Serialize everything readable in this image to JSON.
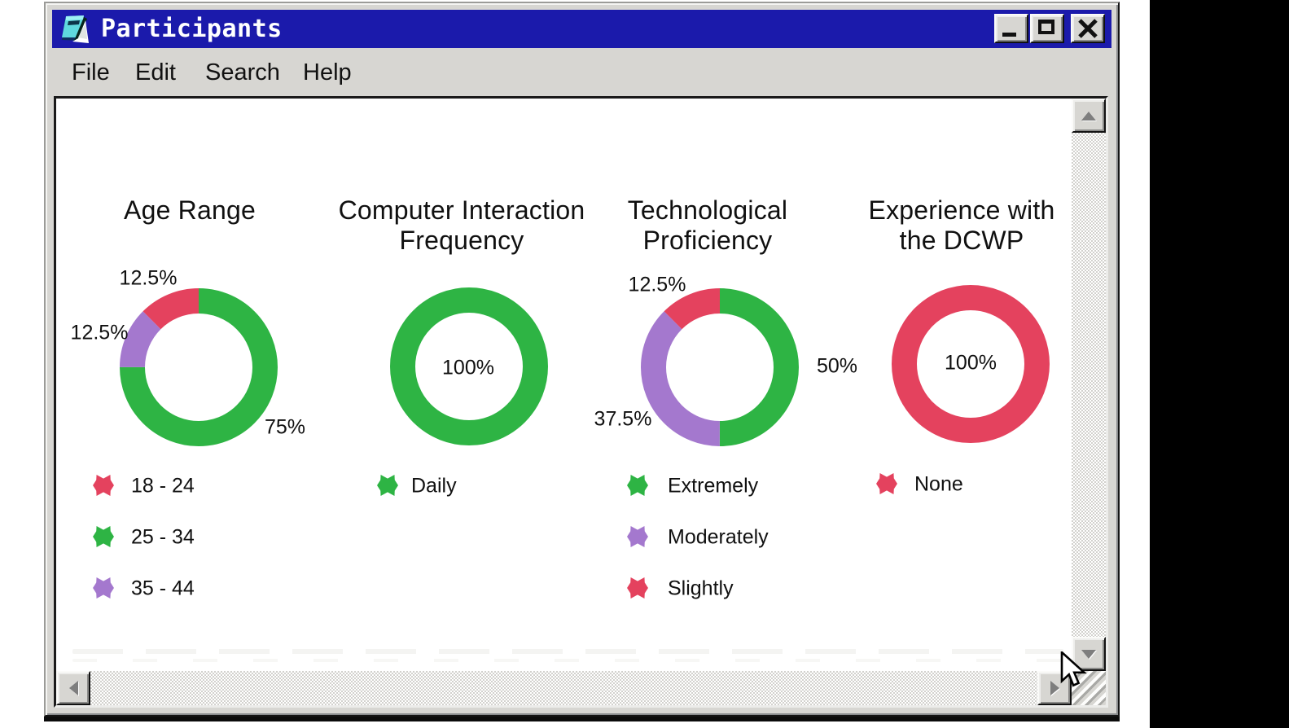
{
  "window": {
    "title": "Participants",
    "menu": [
      {
        "label": "File"
      },
      {
        "label": "Edit"
      },
      {
        "label": "Search"
      },
      {
        "label": "Help"
      }
    ],
    "buttons": {
      "minimize": "minimize",
      "maximize": "maximize",
      "close": "close"
    }
  },
  "colors": {
    "green": "#2eb444",
    "red": "#e4425e",
    "purple": "#a478ce",
    "titlebar_blue": "#1b1aab",
    "chrome_gray": "#d7d6d2",
    "canvas_white": "#ffffff",
    "side_band_black": "#000000",
    "text": "#101010"
  },
  "chart_data": [
    {
      "type": "pie",
      "variant": "donut",
      "title": "Age Range",
      "title_lines": [
        "Age Range",
        ""
      ],
      "categories": [
        "18 - 24",
        "25 - 34",
        "35 - 44"
      ],
      "values": [
        12.5,
        75,
        12.5
      ],
      "slice_colors": [
        "red",
        "green",
        "purple"
      ],
      "ring_clockwise_from_top": [
        {
          "category": "25 - 34",
          "pct": 75,
          "color": "green"
        },
        {
          "category": "35 - 44",
          "pct": 12.5,
          "color": "purple"
        },
        {
          "category": "18 - 24",
          "pct": 12.5,
          "color": "red"
        }
      ],
      "outside_labels": [
        {
          "text": "12.5%",
          "segment": "18 - 24"
        },
        {
          "text": "12.5%",
          "segment": "35 - 44"
        },
        {
          "text": "75%",
          "segment": "25 - 34"
        }
      ],
      "center_label": "",
      "legend": [
        {
          "label": "18 - 24",
          "color": "red"
        },
        {
          "label": "25 - 34",
          "color": "green"
        },
        {
          "label": "35 - 44",
          "color": "purple"
        }
      ]
    },
    {
      "type": "pie",
      "variant": "donut",
      "title": "Computer Interaction Frequency",
      "title_lines": [
        "Computer Interaction",
        "Frequency"
      ],
      "categories": [
        "Daily"
      ],
      "values": [
        100
      ],
      "slice_colors": [
        "green"
      ],
      "ring_clockwise_from_top": [
        {
          "category": "Daily",
          "pct": 100,
          "color": "green"
        }
      ],
      "outside_labels": [],
      "center_label": "100%",
      "legend": [
        {
          "label": "Daily",
          "color": "green"
        }
      ]
    },
    {
      "type": "pie",
      "variant": "donut",
      "title": "Technological Proficiency",
      "title_lines": [
        "Technological",
        "Proficiency"
      ],
      "categories": [
        "Extremely",
        "Moderately",
        "Slightly"
      ],
      "values": [
        50,
        37.5,
        12.5
      ],
      "slice_colors": [
        "green",
        "purple",
        "red"
      ],
      "ring_clockwise_from_top": [
        {
          "category": "Extremely",
          "pct": 50,
          "color": "green"
        },
        {
          "category": "Moderately",
          "pct": 37.5,
          "color": "purple"
        },
        {
          "category": "Slightly",
          "pct": 12.5,
          "color": "red"
        }
      ],
      "outside_labels": [
        {
          "text": "12.5%",
          "segment": "Slightly"
        },
        {
          "text": "50%",
          "segment": "Extremely"
        },
        {
          "text": "37.5%",
          "segment": "Moderately"
        }
      ],
      "center_label": "",
      "legend": [
        {
          "label": "Extremely",
          "color": "green"
        },
        {
          "label": "Moderately",
          "color": "purple"
        },
        {
          "label": "Slightly",
          "color": "red"
        }
      ]
    },
    {
      "type": "pie",
      "variant": "donut",
      "title": "Experience with the DCWP",
      "title_lines": [
        "Experience with",
        "the DCWP"
      ],
      "categories": [
        "None"
      ],
      "values": [
        100
      ],
      "slice_colors": [
        "red"
      ],
      "ring_clockwise_from_top": [
        {
          "category": "None",
          "pct": 100,
          "color": "red"
        }
      ],
      "outside_labels": [],
      "center_label": "100%",
      "legend": [
        {
          "label": "None",
          "color": "red"
        }
      ]
    }
  ]
}
